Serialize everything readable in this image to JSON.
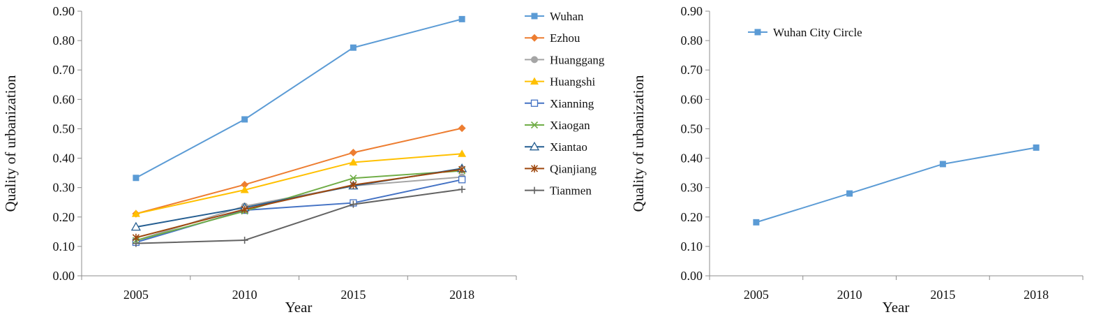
{
  "colors": {
    "Wuhan": "#5b9bd5",
    "Ezhou": "#ed7d31",
    "Huanggang": "#a5a5a5",
    "Huangshi": "#ffc000",
    "Xianning": "#4472c4",
    "Xiaogan": "#70ad47",
    "Xiantao": "#255e91",
    "Qianjiang": "#9e480e",
    "Tianmen": "#636363",
    "WuhanCityCircle": "#5b9bd5",
    "axis": "#8c8c8c",
    "grid": "#d9d9d9"
  },
  "chart_data": [
    {
      "type": "line",
      "title": "",
      "xlabel": "Year",
      "ylabel": "Quality of urbanization",
      "categories": [
        "2005",
        "2010",
        "2015",
        "2018"
      ],
      "ylim": [
        0,
        0.9
      ],
      "yticks": [
        "0.00",
        "0.10",
        "0.20",
        "0.30",
        "0.40",
        "0.50",
        "0.60",
        "0.70",
        "0.80",
        "0.90"
      ],
      "grid": false,
      "legend_position": "right",
      "series": [
        {
          "name": "Wuhan",
          "marker": "square",
          "color_key": "Wuhan",
          "values": [
            0.333,
            0.532,
            0.776,
            0.873
          ]
        },
        {
          "name": "Ezhou",
          "marker": "diamond",
          "color_key": "Ezhou",
          "values": [
            0.211,
            0.31,
            0.419,
            0.502
          ]
        },
        {
          "name": "Huanggang",
          "marker": "circle",
          "color_key": "Huanggang",
          "values": [
            0.12,
            0.237,
            0.306,
            0.336
          ]
        },
        {
          "name": "Huangshi",
          "marker": "triangle",
          "color_key": "Huangshi",
          "values": [
            0.211,
            0.292,
            0.386,
            0.415
          ]
        },
        {
          "name": "Xianning",
          "marker": "square-open",
          "color_key": "Xianning",
          "values": [
            0.114,
            0.223,
            0.248,
            0.327
          ]
        },
        {
          "name": "Xiaogan",
          "marker": "x",
          "color_key": "Xiaogan",
          "values": [
            0.12,
            0.22,
            0.332,
            0.357
          ]
        },
        {
          "name": "Xiantao",
          "marker": "triangle-open",
          "color_key": "Xiantao",
          "values": [
            0.166,
            0.232,
            0.306,
            0.365
          ]
        },
        {
          "name": "Qianjiang",
          "marker": "star",
          "color_key": "Qianjiang",
          "values": [
            0.13,
            0.226,
            0.309,
            0.362
          ]
        },
        {
          "name": "Tianmen",
          "marker": "plus",
          "color_key": "Tianmen",
          "values": [
            0.11,
            0.121,
            0.243,
            0.294
          ]
        }
      ]
    },
    {
      "type": "line",
      "title": "",
      "xlabel": "Year",
      "ylabel": "Quality of urbanization",
      "categories": [
        "2005",
        "2010",
        "2015",
        "2018"
      ],
      "ylim": [
        0,
        0.9
      ],
      "yticks": [
        "0.00",
        "0.10",
        "0.20",
        "0.30",
        "0.40",
        "0.50",
        "0.60",
        "0.70",
        "0.80",
        "0.90"
      ],
      "grid": false,
      "legend_position": "top-left",
      "series": [
        {
          "name": "Wuhan City Circle",
          "marker": "square",
          "color_key": "WuhanCityCircle",
          "values": [
            0.182,
            0.28,
            0.38,
            0.436
          ]
        }
      ]
    }
  ]
}
